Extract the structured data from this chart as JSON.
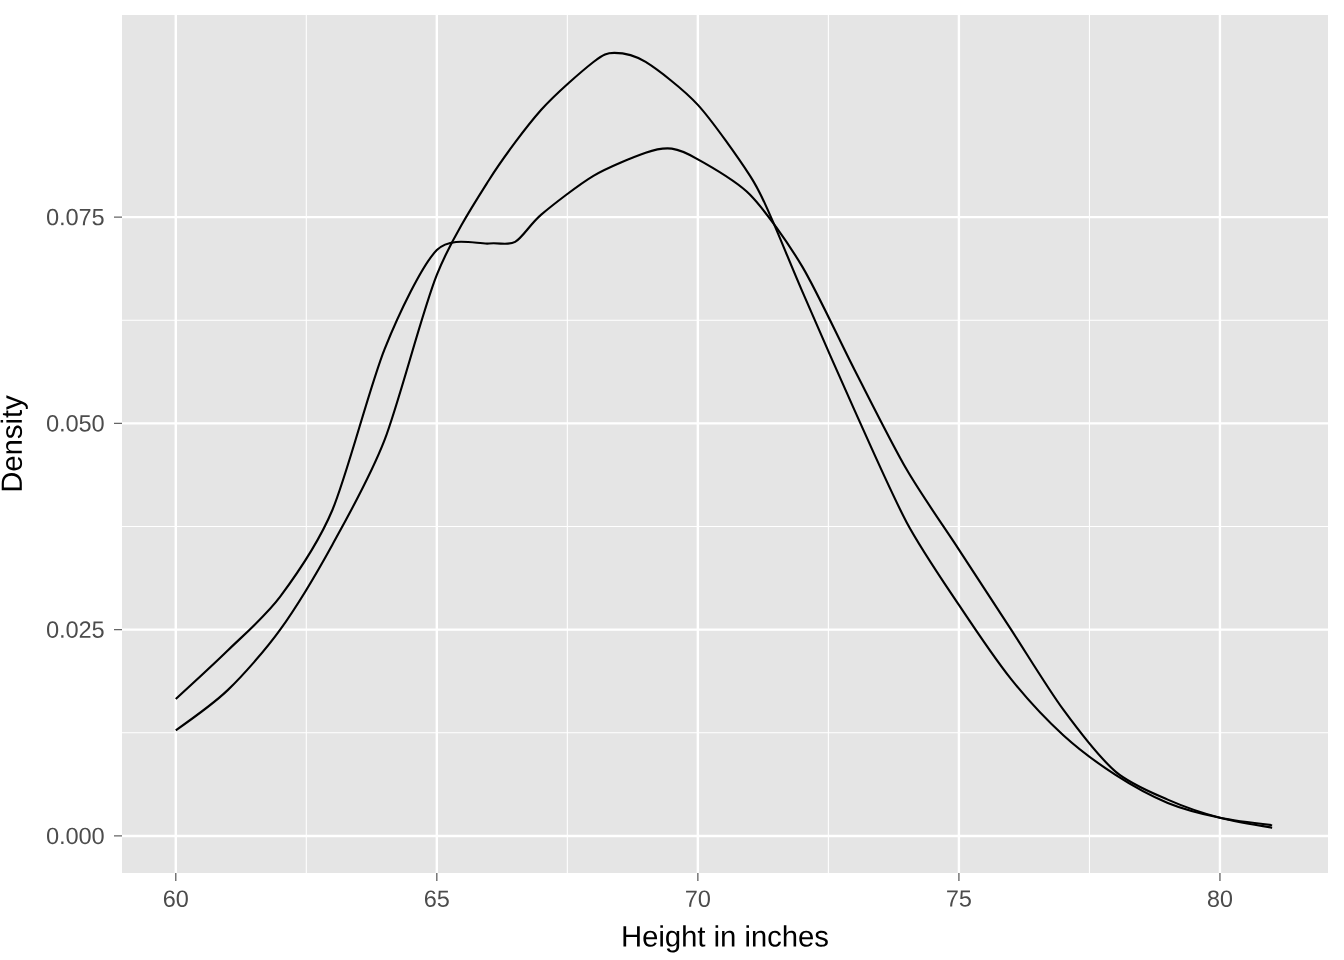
{
  "chart_data": {
    "type": "line",
    "xlabel": "Height in inches",
    "ylabel": "Density",
    "xlim": [
      58.97,
      82.07
    ],
    "ylim": [
      -0.0045,
      0.0995
    ],
    "xticks": [
      60,
      65,
      70,
      75,
      80
    ],
    "yticks": [
      {
        "value": 0,
        "label": "0.000"
      },
      {
        "value": 0.025,
        "label": "0.025"
      },
      {
        "value": 0.05,
        "label": "0.050"
      },
      {
        "value": 0.075,
        "label": "0.075"
      }
    ],
    "grid": true,
    "line_style": "solid",
    "series": [
      {
        "color": "#000000",
        "x": [
          60,
          61,
          62,
          63,
          64,
          65,
          66,
          67,
          68,
          68.4,
          69,
          70,
          71,
          71.4,
          72,
          73,
          74,
          75,
          76,
          77,
          78,
          79,
          80,
          81
        ],
        "values": [
          0.0128,
          0.0177,
          0.025,
          0.0353,
          0.048,
          0.068,
          0.0795,
          0.088,
          0.0938,
          0.0949,
          0.0938,
          0.0886,
          0.08,
          0.075,
          0.066,
          0.0516,
          0.038,
          0.028,
          0.019,
          0.0122,
          0.0074,
          0.004,
          0.0022,
          0.0013
        ]
      },
      {
        "color": "#000000",
        "x": [
          60,
          61,
          62,
          63,
          64,
          65,
          66,
          66.5,
          67,
          68,
          69,
          69.5,
          70,
          71,
          72,
          73,
          74,
          75,
          76,
          77,
          78,
          79,
          80,
          81
        ],
        "values": [
          0.0166,
          0.0225,
          0.029,
          0.0395,
          0.059,
          0.071,
          0.0718,
          0.072,
          0.0753,
          0.08,
          0.0828,
          0.0833,
          0.082,
          0.0777,
          0.069,
          0.0565,
          0.0444,
          0.0347,
          0.025,
          0.0153,
          0.0078,
          0.0044,
          0.0022,
          0.001
        ]
      }
    ]
  }
}
